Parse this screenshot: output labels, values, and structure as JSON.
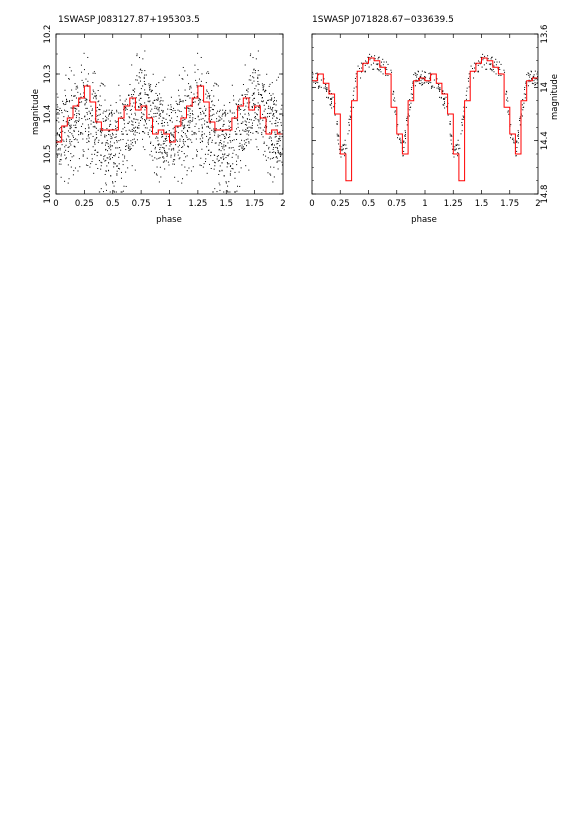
{
  "chart_data": [
    {
      "type": "scatter",
      "title": "1SWASP J083127.87+195303.5",
      "xlabel": "phase",
      "ylabel": "magnitude",
      "xlim": [
        0,
        2
      ],
      "ylim": [
        10.6,
        10.2
      ],
      "y_inverted": true,
      "xticks": [
        "0",
        "0.25",
        "0.5",
        "0.75",
        "1",
        "1.25",
        "1.5",
        "1.75",
        "2"
      ],
      "yticks": [
        "10.2",
        "10.3",
        "10.4",
        "10.5",
        "10.6"
      ],
      "yaxis_side": "left",
      "legend": "none",
      "series": [
        {
          "color": "#000000",
          "style": "points",
          "profile_x": [
            0,
            0.1,
            0.2,
            0.25,
            0.3,
            0.4,
            0.5,
            0.6,
            0.7,
            0.75,
            0.8,
            0.9,
            1.0
          ],
          "profile_y": [
            10.46,
            10.43,
            10.39,
            10.37,
            10.4,
            10.46,
            10.48,
            10.45,
            10.4,
            10.36,
            10.38,
            10.43,
            10.46
          ],
          "scatter_amplitude": 0.1
        },
        {
          "color": "#ff0000",
          "style": "step",
          "x": [
            0,
            0.05,
            0.1,
            0.15,
            0.2,
            0.25,
            0.3,
            0.35,
            0.4,
            0.45,
            0.5,
            0.55,
            0.6,
            0.65,
            0.7,
            0.75,
            0.8,
            0.85,
            0.9,
            0.95,
            1.0,
            1.05,
            1.1,
            1.15,
            1.2,
            1.25,
            1.3,
            1.35,
            1.4,
            1.45,
            1.5,
            1.55,
            1.6,
            1.65,
            1.7,
            1.75,
            1.8,
            1.85,
            1.9,
            1.95
          ],
          "y": [
            10.47,
            10.43,
            10.41,
            10.38,
            10.36,
            10.33,
            10.37,
            10.42,
            10.44,
            10.44,
            10.44,
            10.41,
            10.38,
            10.36,
            10.39,
            10.38,
            10.41,
            10.45,
            10.44,
            10.45,
            10.47,
            10.43,
            10.41,
            10.38,
            10.36,
            10.33,
            10.37,
            10.42,
            10.44,
            10.44,
            10.44,
            10.41,
            10.38,
            10.36,
            10.39,
            10.38,
            10.41,
            10.45,
            10.44,
            10.45
          ]
        }
      ]
    },
    {
      "type": "scatter",
      "title": "1SWASP J071828.67−033639.5",
      "xlabel": "phase",
      "ylabel": "magnitude",
      "xlim": [
        0,
        2
      ],
      "ylim": [
        14.8,
        13.6
      ],
      "y_inverted": true,
      "xticks": [
        "0",
        "0.25",
        "0.5",
        "0.75",
        "1",
        "1.25",
        "1.5",
        "1.75",
        "2"
      ],
      "yticks": [
        "13.6",
        "14",
        "14.4",
        "14.8"
      ],
      "yaxis_side": "right",
      "legend": "none",
      "series": [
        {
          "color": "#000000",
          "style": "points",
          "profile_x": [
            0,
            0.1,
            0.2,
            0.25,
            0.3,
            0.4,
            0.5,
            0.6,
            0.7,
            0.75,
            0.8,
            0.9,
            1.0
          ],
          "profile_y": [
            13.92,
            13.97,
            14.15,
            14.5,
            14.45,
            13.9,
            13.8,
            13.82,
            13.9,
            14.3,
            14.5,
            13.95,
            13.92
          ],
          "scatter_amplitude": 0.12
        },
        {
          "color": "#ff0000",
          "style": "step",
          "x": [
            0,
            0.05,
            0.1,
            0.15,
            0.2,
            0.25,
            0.3,
            0.35,
            0.4,
            0.45,
            0.5,
            0.55,
            0.6,
            0.65,
            0.7,
            0.75,
            0.8,
            0.85,
            0.9,
            0.95,
            1.0,
            1.05,
            1.1,
            1.15,
            1.2,
            1.25,
            1.3,
            1.35,
            1.4,
            1.45,
            1.5,
            1.55,
            1.6,
            1.65,
            1.7,
            1.75,
            1.8,
            1.85,
            1.9,
            1.95
          ],
          "y": [
            13.95,
            13.9,
            13.97,
            14.05,
            14.2,
            14.5,
            14.7,
            14.1,
            13.88,
            13.82,
            13.78,
            13.8,
            13.85,
            13.9,
            14.15,
            14.35,
            14.5,
            14.1,
            13.95,
            13.93,
            13.95,
            13.9,
            13.97,
            14.05,
            14.2,
            14.5,
            14.7,
            14.1,
            13.88,
            13.82,
            13.78,
            13.8,
            13.85,
            13.9,
            14.15,
            14.35,
            14.5,
            14.1,
            13.95,
            13.93
          ]
        }
      ]
    }
  ]
}
